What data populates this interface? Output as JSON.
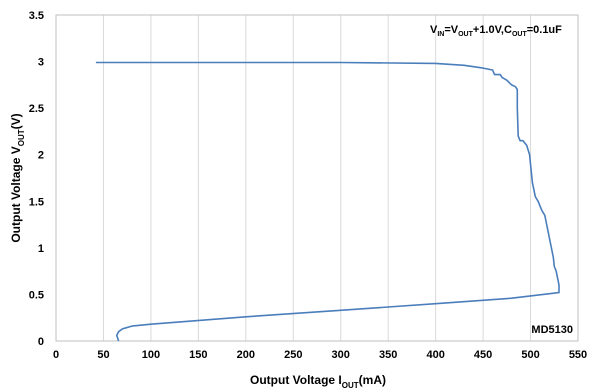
{
  "chart_data": {
    "type": "line",
    "xlabel": {
      "main": "Output Voltage I",
      "sub": "OUT",
      "unit": "(mA)"
    },
    "ylabel": {
      "main": "Output Voltage V",
      "sub": "OUT",
      "unit": "(V)"
    },
    "xlim": [
      0,
      550
    ],
    "ylim": [
      0,
      3.5
    ],
    "xticks": [
      "0",
      "50",
      "100",
      "150",
      "200",
      "250",
      "300",
      "350",
      "400",
      "450",
      "500",
      "550"
    ],
    "yticks": [
      "0",
      "0.5",
      "1",
      "1.5",
      "2",
      "2.5",
      "3",
      "3.5"
    ],
    "grid": "vertical",
    "legend": "none",
    "annotations": {
      "conditions": [
        {
          "text": "V",
          "sub": "IN"
        },
        {
          "text": "=V",
          "sub": "OUT"
        },
        {
          "text": "+1.0V,C",
          "sub": "OUT"
        },
        {
          "text": "=0.1uF",
          "sub": ""
        }
      ],
      "part": "MD5130"
    },
    "series": [
      {
        "color": "#4a7ebb",
        "x": [
          42,
          100,
          200,
          300,
          400,
          430,
          450,
          460,
          462,
          468,
          470,
          475,
          480,
          484,
          486,
          486,
          487,
          489,
          492,
          496,
          499,
          500,
          502,
          505,
          508,
          510,
          512,
          515,
          517,
          520,
          522,
          524,
          525,
          527,
          528,
          529,
          530,
          530,
          480,
          400,
          300,
          200,
          100,
          80,
          70,
          66,
          64,
          65,
          66
        ],
        "y": [
          2.99,
          2.99,
          2.99,
          2.99,
          2.98,
          2.96,
          2.93,
          2.91,
          2.86,
          2.86,
          2.83,
          2.8,
          2.75,
          2.73,
          2.7,
          2.5,
          2.2,
          2.15,
          2.15,
          2.1,
          2.0,
          1.9,
          1.7,
          1.55,
          1.5,
          1.45,
          1.4,
          1.35,
          1.25,
          1.1,
          1.0,
          0.9,
          0.8,
          0.75,
          0.7,
          0.65,
          0.6,
          0.52,
          0.46,
          0.4,
          0.33,
          0.26,
          0.18,
          0.16,
          0.13,
          0.1,
          0.06,
          0.03,
          0.0
        ]
      }
    ]
  }
}
